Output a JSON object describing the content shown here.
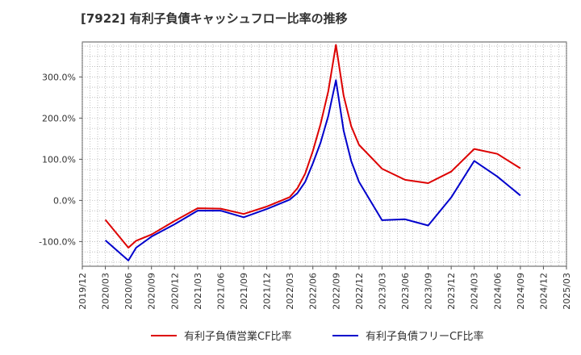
{
  "chart_data": {
    "type": "line",
    "title": "[7922]  有利子負債キャッシュフロー比率の推移",
    "x_ticks": [
      "2019/12",
      "2020/03",
      "2020/06",
      "2020/09",
      "2020/12",
      "2021/03",
      "2021/06",
      "2021/09",
      "2021/12",
      "2022/03",
      "2022/06",
      "2022/09",
      "2022/12",
      "2023/03",
      "2023/06",
      "2023/09",
      "2023/12",
      "2024/03",
      "2024/06",
      "2024/09",
      "2024/12",
      "2025/03"
    ],
    "y_ticks": [
      300,
      200,
      100,
      0,
      -100
    ],
    "y_tick_labels": [
      "300.0%",
      "200.0%",
      "100.0%",
      "0.0%",
      "-100.0%"
    ],
    "ylim": [
      -160,
      385
    ],
    "grid": true,
    "legend_position": "bottom",
    "series": [
      {
        "name": "有利子負債営業CF比率",
        "color": "#dd0000",
        "x": [
          "2020/03",
          "2020/06",
          "2020/07",
          "2020/09",
          "2020/12",
          "2021/03",
          "2021/06",
          "2021/09",
          "2021/12",
          "2022/03",
          "2022/04",
          "2022/05",
          "2022/06",
          "2022/07",
          "2022/08",
          "2022/09",
          "2022/10",
          "2022/11",
          "2022/12",
          "2023/03",
          "2023/06",
          "2023/09",
          "2023/12",
          "2024/03",
          "2024/06",
          "2024/09"
        ],
        "values": [
          -47,
          -115,
          -98,
          -83,
          -50,
          -19,
          -20,
          -33,
          -15,
          8,
          30,
          65,
          120,
          185,
          265,
          378,
          255,
          180,
          135,
          77,
          50,
          42,
          70,
          125,
          113,
          78
        ]
      },
      {
        "name": "有利子負債フリーCF比率",
        "color": "#0000cc",
        "x": [
          "2020/03",
          "2020/06",
          "2020/07",
          "2020/09",
          "2020/12",
          "2021/03",
          "2021/06",
          "2021/09",
          "2021/12",
          "2022/03",
          "2022/04",
          "2022/05",
          "2022/06",
          "2022/07",
          "2022/08",
          "2022/09",
          "2022/10",
          "2022/11",
          "2022/12",
          "2023/03",
          "2023/06",
          "2023/09",
          "2023/12",
          "2024/03",
          "2024/06",
          "2024/09"
        ],
        "values": [
          -97,
          -146,
          -115,
          -88,
          -58,
          -25,
          -25,
          -41,
          -21,
          2,
          18,
          45,
          90,
          140,
          205,
          292,
          170,
          95,
          45,
          -48,
          -46,
          -61,
          7,
          96,
          58,
          12
        ]
      }
    ]
  }
}
